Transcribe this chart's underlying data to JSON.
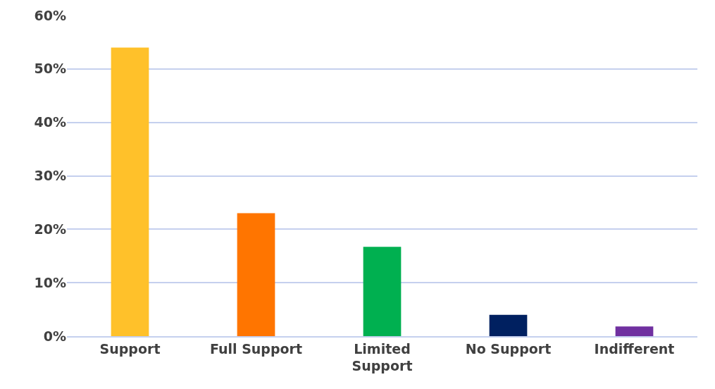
{
  "chart_data": {
    "type": "bar",
    "categories": [
      "Support",
      "Full Support",
      "Limited Support",
      "No Support",
      "Indifferent"
    ],
    "values": [
      54,
      23,
      16.7,
      4,
      1.8
    ],
    "colors": [
      "#ffc12a",
      "#ff7500",
      "#00b050",
      "#002060",
      "#7030a0"
    ],
    "ylim": [
      0,
      60
    ],
    "yticks": [
      {
        "value": 0,
        "label": "0%"
      },
      {
        "value": 10,
        "label": "10%"
      },
      {
        "value": 20,
        "label": "20%"
      },
      {
        "value": 30,
        "label": "30%"
      },
      {
        "value": 40,
        "label": "40%"
      },
      {
        "value": 50,
        "label": "50%"
      },
      {
        "value": 60,
        "label": "60%"
      }
    ],
    "grid": "y"
  }
}
